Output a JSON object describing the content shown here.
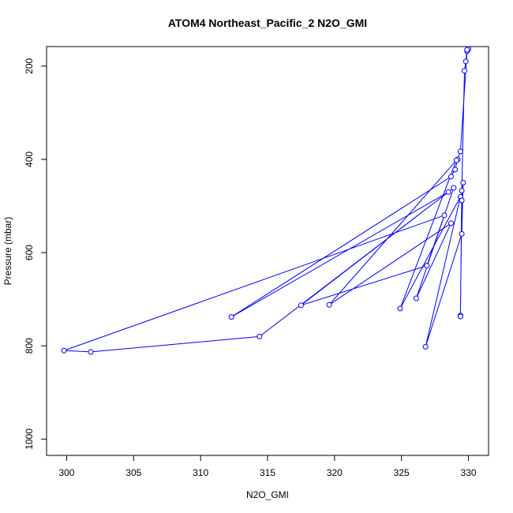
{
  "chart_data": {
    "type": "line",
    "title": "ATOM4 Northeast_Pacific_2 N2O_GMI",
    "xlabel": "N2O_GMI",
    "ylabel": "Pressure (mbar)",
    "xlim": [
      298.5,
      331.5
    ],
    "ylim": [
      1035,
      158
    ],
    "y_reversed": true,
    "x_ticks": [
      300,
      305,
      310,
      315,
      320,
      325,
      330
    ],
    "y_ticks": [
      200,
      400,
      600,
      800,
      1000
    ],
    "series": [
      {
        "color": "#0000ff",
        "marker": "open-circle",
        "x": [
          330.0,
          329.9,
          329.4,
          329.2,
          329.0,
          328.7,
          312.3,
          328.5,
          314.4,
          301.8,
          299.8,
          328.2,
          326.9,
          317.5,
          328.9,
          326.1,
          328.7,
          319.6,
          329.1,
          324.9,
          329.4,
          326.8,
          329.5,
          329.6,
          329.5,
          329.4,
          329.4,
          329.5,
          329.7,
          329.8,
          329.9
        ],
        "y": [
          163,
          168,
          383,
          400,
          422,
          437,
          738,
          470,
          780,
          813,
          810,
          520,
          628,
          713,
          461,
          698,
          537,
          712,
          402,
          720,
          480,
          802,
          560,
          450,
          488,
          735,
          737,
          467,
          210,
          190,
          165
        ]
      }
    ]
  }
}
